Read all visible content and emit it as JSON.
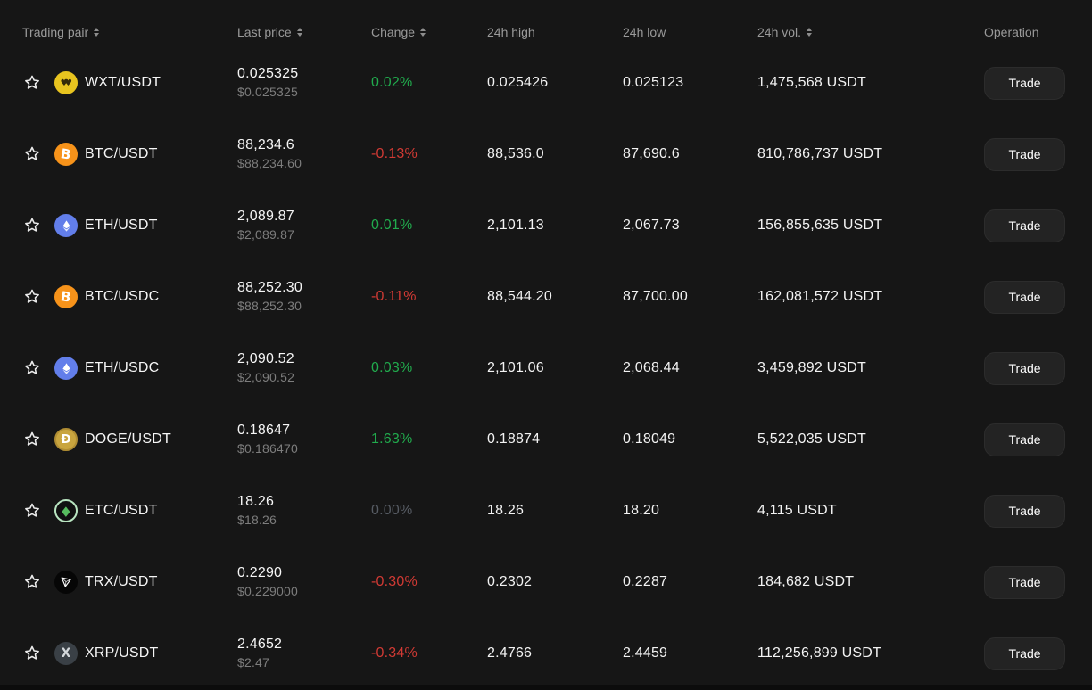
{
  "labels": {
    "trade": "Trade"
  },
  "header": {
    "columns": [
      {
        "label": "Trading pair",
        "sortable": true
      },
      {
        "label": "Last price",
        "sortable": true
      },
      {
        "label": "Change",
        "sortable": true
      },
      {
        "label": "24h high",
        "sortable": false
      },
      {
        "label": "24h low",
        "sortable": false
      },
      {
        "label": "24h vol.",
        "sortable": true
      },
      {
        "label": "Operation",
        "sortable": false
      }
    ]
  },
  "colors": {
    "background": "#161616",
    "positive": "#21ab4d",
    "negative": "#d13a34",
    "neutral": "#565b63"
  },
  "rows": [
    {
      "pair": "WXT/USDT",
      "icon": "wxt",
      "last_price": "0.025325",
      "last_price_usd": "$0.025325",
      "change": "0.02%",
      "direction": "up",
      "high": "0.025426",
      "low": "0.025123",
      "volume": "1,475,568 USDT"
    },
    {
      "pair": "BTC/USDT",
      "icon": "btc",
      "last_price": "88,234.6",
      "last_price_usd": "$88,234.60",
      "change": "-0.13%",
      "direction": "down",
      "high": "88,536.0",
      "low": "87,690.6",
      "volume": "810,786,737 USDT"
    },
    {
      "pair": "ETH/USDT",
      "icon": "eth",
      "last_price": "2,089.87",
      "last_price_usd": "$2,089.87",
      "change": "0.01%",
      "direction": "up",
      "high": "2,101.13",
      "low": "2,067.73",
      "volume": "156,855,635 USDT"
    },
    {
      "pair": "BTC/USDC",
      "icon": "btc",
      "last_price": "88,252.30",
      "last_price_usd": "$88,252.30",
      "change": "-0.11%",
      "direction": "down",
      "high": "88,544.20",
      "low": "87,700.00",
      "volume": "162,081,572 USDT"
    },
    {
      "pair": "ETH/USDC",
      "icon": "eth",
      "last_price": "2,090.52",
      "last_price_usd": "$2,090.52",
      "change": "0.03%",
      "direction": "up",
      "high": "2,101.06",
      "low": "2,068.44",
      "volume": "3,459,892 USDT"
    },
    {
      "pair": "DOGE/USDT",
      "icon": "doge",
      "last_price": "0.18647",
      "last_price_usd": "$0.186470",
      "change": "1.63%",
      "direction": "up",
      "high": "0.18874",
      "low": "0.18049",
      "volume": "5,522,035 USDT"
    },
    {
      "pair": "ETC/USDT",
      "icon": "etc",
      "last_price": "18.26",
      "last_price_usd": "$18.26",
      "change": "0.00%",
      "direction": "flat",
      "high": "18.26",
      "low": "18.20",
      "volume": "4,115 USDT"
    },
    {
      "pair": "TRX/USDT",
      "icon": "trx",
      "last_price": "0.2290",
      "last_price_usd": "$0.229000",
      "change": "-0.30%",
      "direction": "down",
      "high": "0.2302",
      "low": "0.2287",
      "volume": "184,682 USDT"
    },
    {
      "pair": "XRP/USDT",
      "icon": "xrp",
      "last_price": "2.4652",
      "last_price_usd": "$2.47",
      "change": "-0.34%",
      "direction": "down",
      "high": "2.4766",
      "low": "2.4459",
      "volume": "112,256,899 USDT"
    }
  ]
}
